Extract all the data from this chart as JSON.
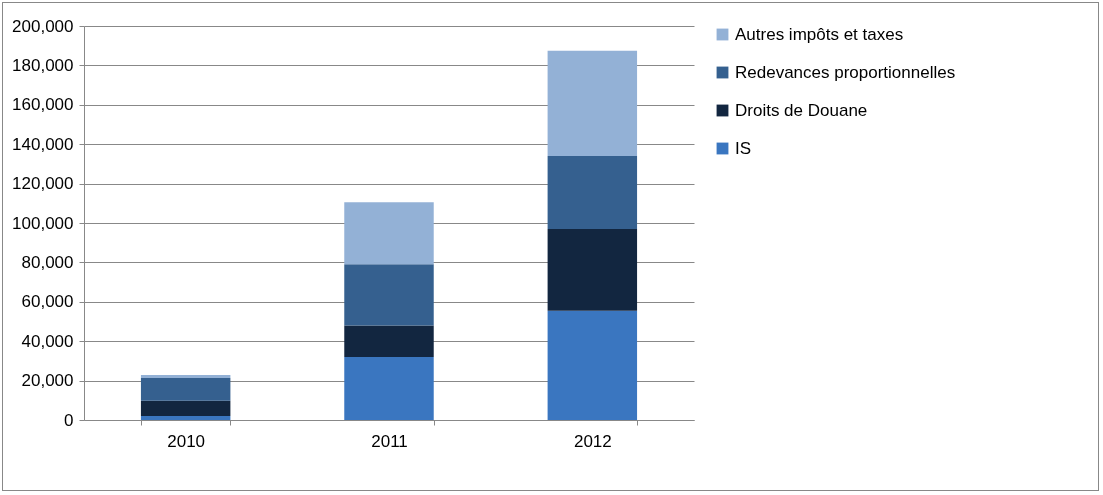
{
  "chart_data": {
    "type": "bar",
    "stacked": true,
    "categories": [
      "2010",
      "2011",
      "2012"
    ],
    "series": [
      {
        "name": "IS",
        "color": "#3a76c0",
        "values": [
          2000,
          32000,
          55500
        ]
      },
      {
        "name": "Droits de Douane",
        "color": "#122640",
        "values": [
          7800,
          16000,
          41500
        ]
      },
      {
        "name": "Redevances proportionnelles",
        "color": "#35608f",
        "values": [
          11500,
          31000,
          37000
        ]
      },
      {
        "name": "Autres impôts et taxes",
        "color": "#93b1d6",
        "values": [
          1500,
          31500,
          53500
        ]
      }
    ],
    "ylim": [
      0,
      200000
    ],
    "yticks": [
      0,
      {
        "value": 20000,
        "label": "20,000"
      },
      {
        "value": 40000,
        "label": "40,000"
      },
      {
        "value": 60000,
        "label": "60,000"
      },
      {
        "value": 80000,
        "label": "80,000"
      },
      {
        "value": 100000,
        "label": "100,000"
      },
      {
        "value": 120000,
        "label": "120,000"
      },
      {
        "value": 140000,
        "label": "140,000"
      },
      {
        "value": 160000,
        "label": "160,000"
      },
      {
        "value": 180000,
        "label": "180,000"
      },
      {
        "value": 200000,
        "label": "200,000"
      }
    ],
    "grid": "y",
    "legend": "right"
  }
}
